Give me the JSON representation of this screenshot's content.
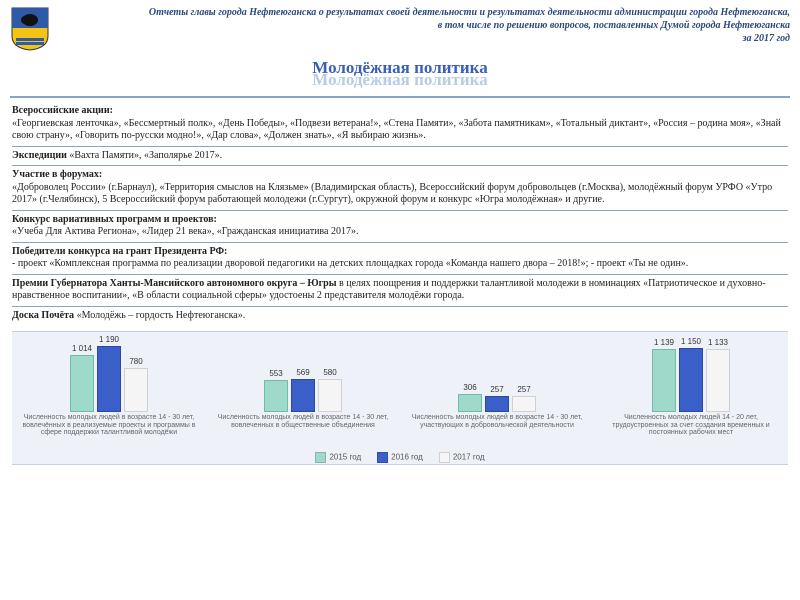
{
  "header": {
    "line1": "Отчеты главы города Нефтеюганска о результатах своей деятельности и результатах деятельности администрации города Нефтеюганска,",
    "line2": "в том числе по решению вопросов, поставленных Думой города Нефтеюганска",
    "line3": "за 2017 год"
  },
  "title": {
    "main": "Молодёжная политика",
    "shadow": "Молодёжная политика"
  },
  "sections": [
    {
      "heading": "Всероссийские  акции:",
      "body": "«Георгиевская ленточка», «Бессмертный полк», «День Победы», «Подвези ветерана!», «Стена Памяти», «Забота памятникам», «Тотальный диктант», «Россия – родина моя», «Знай свою страну», «Говорить по-русски модно!», «Дар слова», «Должен знать», «Я выбираю жизнь»."
    },
    {
      "heading": "Экспедиции",
      "body": " «Вахта Памяти», «Заполярье 2017».",
      "inline": true
    },
    {
      "heading": "Участие в форумах:",
      "body": "«Доброволец России» (г.Барнаул), «Территория смыслов на Клязьме» (Владимирская область), Всероссийский форум добровольцев (г.Москва), молодёжный форум УРФО «Утро 2017» (г.Челябинск), 5 Всероссийский форум работающей молодежи (г.Сургут), окружной форум и конкурс «Югра молодёжная» и другие."
    },
    {
      "heading": "Конкурс вариативных программ и проектов:",
      "body": "«Учеба Для Актива Региона», «Лидер 21 века», «Гражданская инициатива 2017»."
    },
    {
      "heading": "Победители конкурса на грант Президента РФ:",
      "body": "- проект «Комплексная программа по реализации дворовой педагогики на детских площадках города «Команда нашего двора – 2018!»; - проект «Ты не один»."
    },
    {
      "heading": "Премии Губернатора Ханты-Мансийского автономного округа – Югры",
      "body": " в целях поощрения и поддержки талантливой молодежи в номинациях «Патриотическое и духовно-нравственное воспитании», «В области социальной сферы» удостоены 2 представителя молодёжи города.",
      "inline": true
    },
    {
      "heading": "Доска Почёта",
      "body": " «Молодёжь – гордость Нефтеюганска».",
      "inline": true
    }
  ],
  "chart": {
    "type": "bar",
    "background_color": "#eef2f8",
    "value_fontsize": 8,
    "label_fontsize": 7,
    "ymax": 1300,
    "series_colors": [
      "#9fd9c9",
      "#3a5fc8",
      "#f5f5f5"
    ],
    "series_borders": [
      "#6bbfa8",
      "#2a49a0",
      "#d0d0d0"
    ],
    "legend": [
      "2015 год",
      "2016 год",
      "2017 год"
    ],
    "groups": [
      {
        "values": [
          1014,
          1190,
          780
        ],
        "label": "Численность молодых людей в возрасте 14 - 30 лет, вовлечённых в реализуемые проекты и программы в сфере поддержки талантливой молодёжи"
      },
      {
        "values": [
          553,
          569,
          580
        ],
        "label": "Численность молодых людей в возрасте 14 - 30 лет, вовлеченных в общественные объединения"
      },
      {
        "values": [
          306,
          257,
          257
        ],
        "label": "Численность молодых людей в возрасте 14 - 30 лет, участвующих в добровольческой деятельности"
      },
      {
        "values": [
          1139,
          1150,
          1133
        ],
        "label": "Численность молодых людей 14 - 20 лет, трудоустроенных за счет создания временных и постоянных рабочих мест"
      }
    ]
  }
}
